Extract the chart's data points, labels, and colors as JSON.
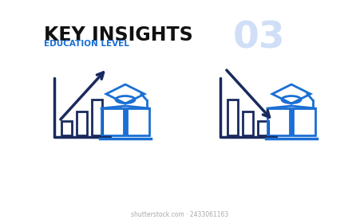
{
  "bg_color": "#ffffff",
  "title": "KEY INSIGHTS",
  "subtitle": "EDUCATION LEVEL",
  "number": "03",
  "title_color": "#111111",
  "subtitle_color": "#1a6fd4",
  "number_color": "#d0dff7",
  "dark_blue": "#1a2a5e",
  "mid_blue": "#1a6fd4",
  "watermark": "shutterstock.com · 2433061163",
  "icon1_bars": [
    0.3,
    0.5,
    0.75
  ],
  "icon2_bars": [
    0.75,
    0.5,
    0.3
  ]
}
